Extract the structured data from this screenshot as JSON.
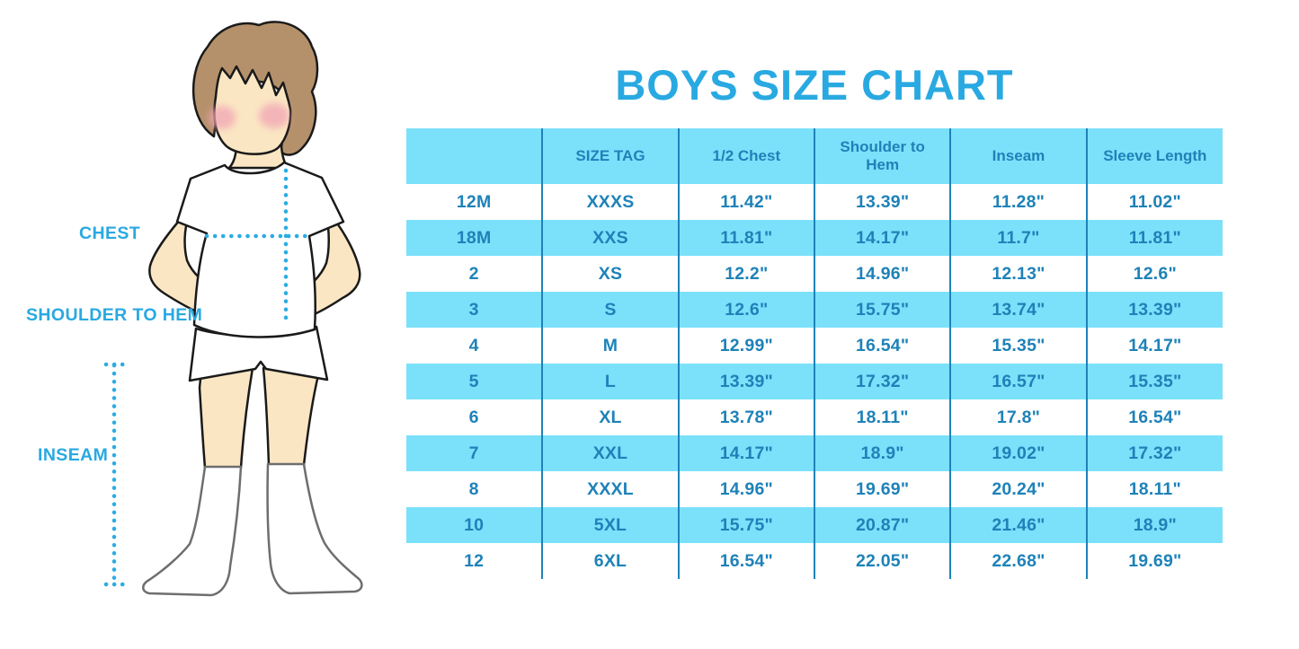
{
  "colors": {
    "accent": "#29A9E1",
    "band": "#7BE1FB",
    "table-text": "#1E82B8",
    "table-line": "#1E82B8",
    "dotted-line": "#2AACE3",
    "skin": "#FBE6C3",
    "hair": "#B5916B",
    "cheek": "#F0A4B4",
    "outline": "#1a1a1a",
    "sock-line": "#6e6e6e"
  },
  "figure": {
    "labels": {
      "chest": "CHEST",
      "shoulder_to_hem": "SHOULDER TO HEM",
      "inseam": "INSEAM"
    }
  },
  "chart_data": {
    "type": "table",
    "title": "BOYS SIZE CHART",
    "headers": [
      "",
      "SIZE TAG",
      "1/2 Chest",
      "Shoulder to Hem",
      "Inseam",
      "Sleeve Length"
    ],
    "rows": [
      [
        "12M",
        "XXXS",
        "11.42\"",
        "13.39\"",
        "11.28\"",
        "11.02\""
      ],
      [
        "18M",
        "XXS",
        "11.81\"",
        "14.17\"",
        "11.7\"",
        "11.81\""
      ],
      [
        "2",
        "XS",
        "12.2\"",
        "14.96\"",
        "12.13\"",
        "12.6\""
      ],
      [
        "3",
        "S",
        "12.6\"",
        "15.75\"",
        "13.74\"",
        "13.39\""
      ],
      [
        "4",
        "M",
        "12.99\"",
        "16.54\"",
        "15.35\"",
        "14.17\""
      ],
      [
        "5",
        "L",
        "13.39\"",
        "17.32\"",
        "16.57\"",
        "15.35\""
      ],
      [
        "6",
        "XL",
        "13.78\"",
        "18.11\"",
        "17.8\"",
        "16.54\""
      ],
      [
        "7",
        "XXL",
        "14.17\"",
        "18.9\"",
        "19.02\"",
        "17.32\""
      ],
      [
        "8",
        "XXXL",
        "14.96\"",
        "19.69\"",
        "20.24\"",
        "18.11\""
      ],
      [
        "10",
        "5XL",
        "15.75\"",
        "20.87\"",
        "21.46\"",
        "18.9\""
      ],
      [
        "12",
        "6XL",
        "16.54\"",
        "22.05\"",
        "22.68\"",
        "19.69\""
      ]
    ]
  }
}
